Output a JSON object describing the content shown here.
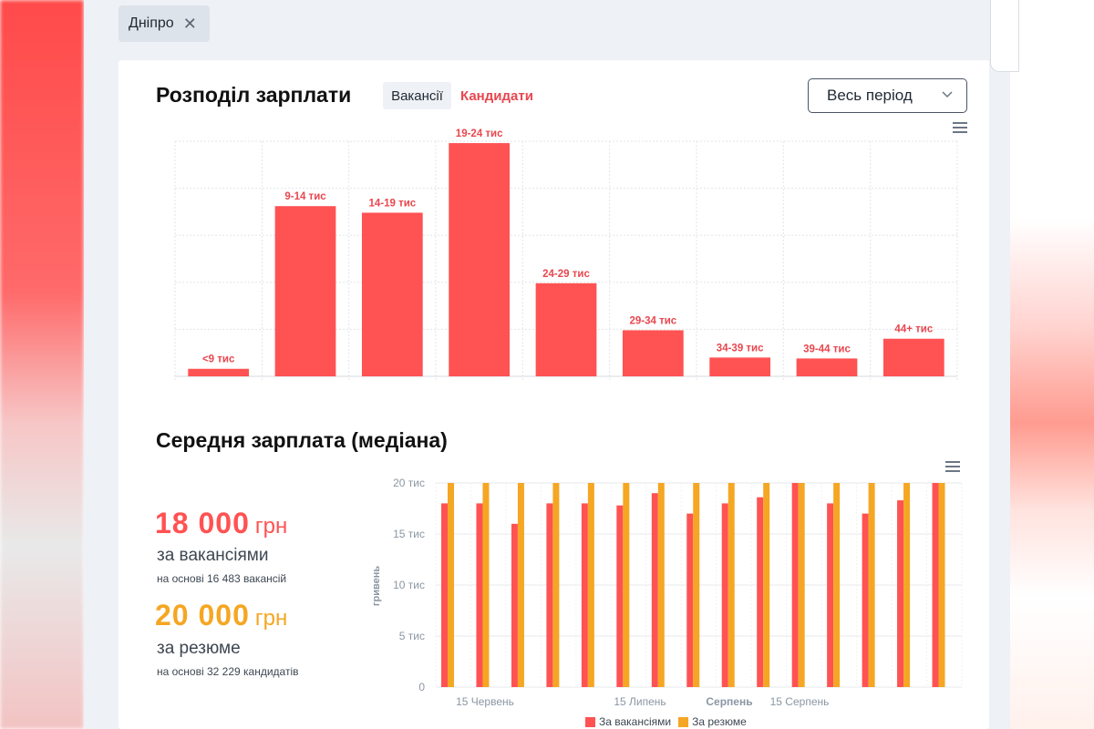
{
  "filter_chip": {
    "label": "Дніпро",
    "close_symbol": "✕"
  },
  "distribution": {
    "title": "Розподіл зарплати",
    "tabs": [
      "Вакансії",
      "Кандидати"
    ],
    "period_select": "Весь період"
  },
  "median": {
    "title": "Середня зарплата (медіана)",
    "vacancies": {
      "value": "18 000",
      "unit": "грн",
      "label": "за вакансіями",
      "note": "на основі 16 483 вакансій"
    },
    "resumes": {
      "value": "20 000",
      "unit": "грн",
      "label": "за резюме",
      "note": "на основі 32 229 кандидатів"
    }
  },
  "colors": {
    "red": "#ff5252",
    "orange": "#f5a623",
    "red_text": "#e8474f"
  },
  "chart_data": [
    {
      "type": "bar",
      "title": "Розподіл зарплати",
      "categories": [
        "<9 тис",
        "9-14 тис",
        "14-19 тис",
        "19-24 тис",
        "24-29 тис",
        "29-34 тис",
        "34-39 тис",
        "39-44 тис",
        "44+ тис"
      ],
      "values": [
        8,
        181,
        174,
        248,
        99,
        49,
        20,
        19,
        40
      ],
      "ylim": [
        0,
        250
      ],
      "grid": true
    },
    {
      "type": "bar",
      "title": "Середня зарплата (медіана)",
      "ylabel": "гривень",
      "yticks": [
        "0",
        "5 тис",
        "10 тис",
        "15 тис",
        "20 тис"
      ],
      "ylim": [
        0,
        20000
      ],
      "x_labels": [
        "15 Червень",
        "15 Липень",
        "Серпень",
        "15 Серпень"
      ],
      "series": [
        {
          "name": "За вакансіями",
          "values": [
            18000,
            18000,
            16000,
            18000,
            18000,
            17800,
            19000,
            17000,
            18000,
            18600,
            20000,
            18000,
            17000,
            18300,
            20000
          ]
        },
        {
          "name": "За резюме",
          "values": [
            20000,
            20000,
            20000,
            20000,
            20000,
            20000,
            20000,
            20000,
            20000,
            20000,
            20000,
            20000,
            20000,
            20000,
            20000
          ]
        }
      ]
    }
  ]
}
